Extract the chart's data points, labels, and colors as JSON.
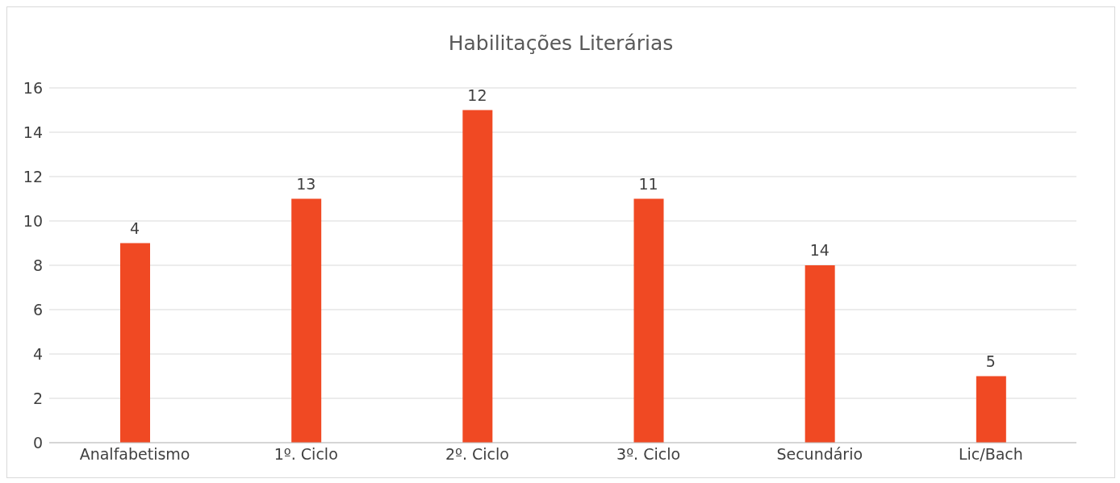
{
  "chart_data": {
    "type": "bar",
    "title": "Habilitações Literárias",
    "categories": [
      "Analfabetismo",
      "1º. Ciclo",
      "2º. Ciclo",
      "3º. Ciclo",
      "Secundário",
      "Lic/Bach"
    ],
    "values": [
      9,
      11,
      15,
      11,
      8,
      3
    ],
    "color": "#f04923",
    "annotations": [
      {
        "text": "4",
        "x": "Analfabetismo",
        "y": 9
      },
      {
        "text": "13",
        "x": "1º. Ciclo",
        "y": 11
      },
      {
        "text": "12",
        "x": "2º. Ciclo",
        "y": 15
      },
      {
        "text": "11",
        "x": "3º. Ciclo",
        "y": 11
      },
      {
        "text": "14",
        "x": "Secundário",
        "y": 8
      },
      {
        "text": "5",
        "x": "Lic/Bach",
        "y": 3
      }
    ],
    "ylim": [
      0,
      16
    ],
    "yticks": [
      0,
      2,
      4,
      6,
      8,
      10,
      12,
      14,
      16
    ],
    "grid": "y"
  }
}
